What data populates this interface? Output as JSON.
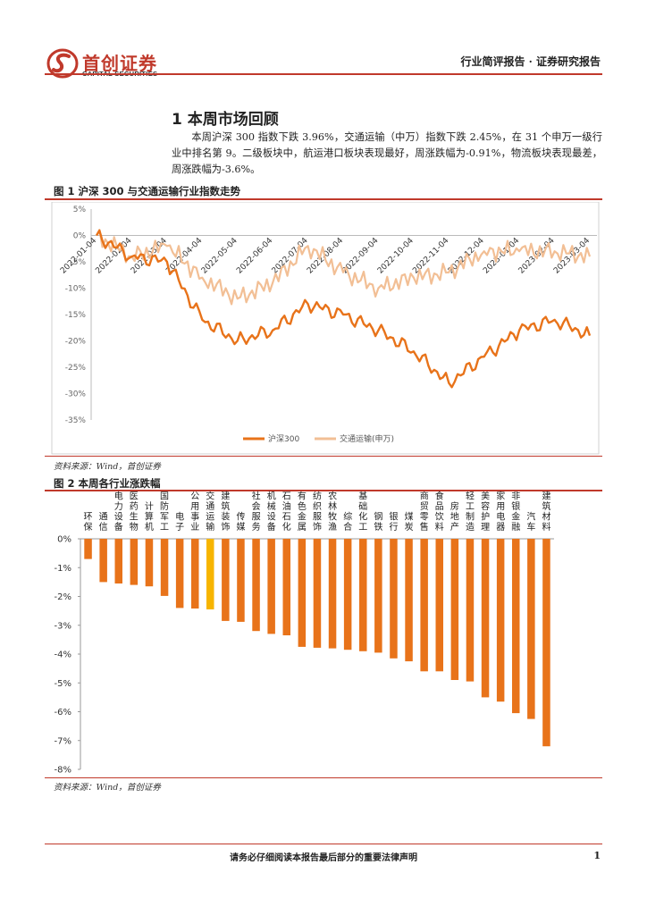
{
  "header": {
    "logo_cn": "首创证券",
    "logo_en": "CAPITAL SECURITIES",
    "right_text": "行业简评报告 · 证券研究报告"
  },
  "section": {
    "title": "1 本周市场回顾",
    "intro": "本周沪深 300 指数下跌 3.96%，交通运输（中万）指数下跌 2.45%，在 31 个申万一级行业中排名第 9。二级板块中，航运港口板块表现最好，周涨跌幅为-0.91%，物流板块表现最差，周涨跌幅为-3.6%。"
  },
  "figure1": {
    "title": "图 1 沪深 300 与交通运输行业指数走势",
    "source": "资料来源：Wind，首创证券"
  },
  "figure2": {
    "title": "图 2 本周各行业涨跌幅",
    "source": "资料来源：Wind，首创证券"
  },
  "colors": {
    "accent": "#c0392b",
    "series1": "#e8731a",
    "series2": "#f2bf95",
    "highlight": "#f7b500"
  },
  "chart_data": [
    {
      "type": "line",
      "title": "",
      "ylim": [
        -35,
        5
      ],
      "yticks": [
        "5%",
        "0%",
        "-5%",
        "-10%",
        "-15%",
        "-20%",
        "-25%",
        "-30%",
        "-35%"
      ],
      "x": [
        "2022-01-04",
        "2022-02-04",
        "2022-03-04",
        "2022-04-04",
        "2022-05-04",
        "2022-06-04",
        "2022-07-04",
        "2022-08-04",
        "2022-09-04",
        "2022-10-04",
        "2022-11-04",
        "2022-12-04",
        "2023-01-04",
        "2023-02-04",
        "2023-03-04"
      ],
      "legend_position": "bottom",
      "grid": false,
      "series": [
        {
          "name": "沪深300",
          "values": [
            0,
            -4,
            -5,
            -16,
            -20,
            -18,
            -13,
            -15,
            -18,
            -22,
            -28,
            -23,
            -18,
            -16,
            -19
          ]
        },
        {
          "name": "交通运输(申万)",
          "values": [
            0,
            -4,
            -2,
            -8,
            -12,
            -9,
            -2,
            -7,
            -10,
            -8,
            -7,
            -3,
            -3,
            -3,
            -4
          ]
        }
      ]
    },
    {
      "type": "bar",
      "title": "",
      "ylim": [
        -8,
        0
      ],
      "yticks": [
        "0%",
        "-1%",
        "-2%",
        "-3%",
        "-4%",
        "-5%",
        "-6%",
        "-7%",
        "-8%"
      ],
      "grid": false,
      "highlight_category": "交通运输",
      "categories": [
        "环保",
        "通信",
        "电力设备",
        "医药生物",
        "计算机",
        "国防军工",
        "电子",
        "公用事业",
        "交通运输",
        "建筑装饰",
        "传媒",
        "社会服务",
        "机械设备",
        "石油石化",
        "有色金属",
        "纺织服饰",
        "农林牧渔",
        "综合",
        "基础化工",
        "钢铁",
        "银行",
        "煤炭",
        "商贸零售",
        "食品饮料",
        "房地产",
        "轻工制造",
        "美容护理",
        "家用电器",
        "非银金融",
        "汽车",
        "建筑材料"
      ],
      "values": [
        -0.7,
        -1.5,
        -1.55,
        -1.6,
        -1.65,
        -1.98,
        -2.4,
        -2.42,
        -2.45,
        -2.85,
        -2.88,
        -3.2,
        -3.3,
        -3.35,
        -3.75,
        -3.78,
        -3.8,
        -3.85,
        -3.9,
        -3.95,
        -4.15,
        -4.25,
        -4.6,
        -4.6,
        -4.9,
        -4.95,
        -5.5,
        -5.65,
        -6.05,
        -6.25,
        -7.2
      ]
    }
  ],
  "footer": {
    "disclaimer": "请务必仔细阅读本报告最后部分的重要法律声明",
    "page": "1"
  }
}
